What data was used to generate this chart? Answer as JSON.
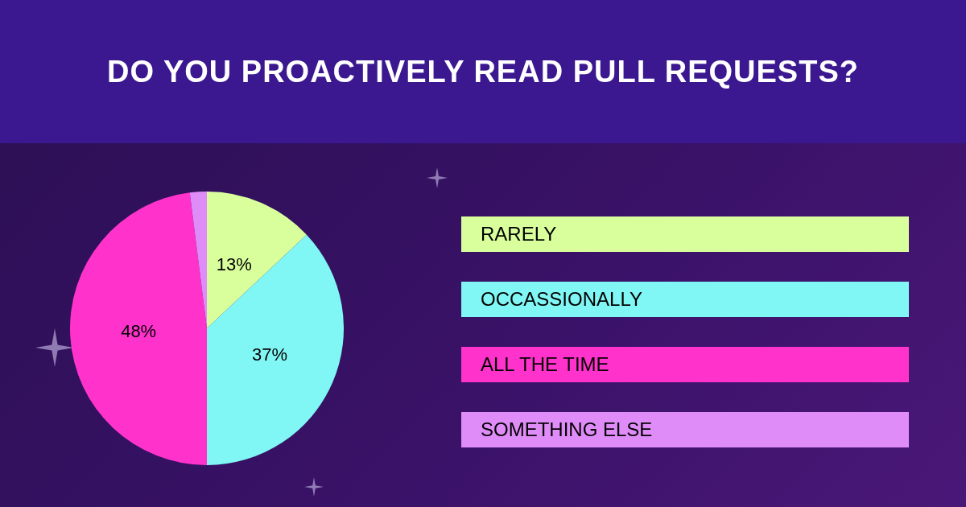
{
  "chart_data": {
    "type": "pie",
    "title": "DO YOU PROACTIVELY READ PULL REQUESTS?",
    "categories": [
      "RARELY",
      "OCCASSIONALLY",
      "ALL THE TIME",
      "SOMETHING ELSE"
    ],
    "values": [
      13,
      37,
      48,
      2
    ],
    "colors": [
      "#d9ff9d",
      "#80f7f5",
      "#ff33cc",
      "#e08cf8"
    ],
    "value_labels": [
      "13%",
      "37%",
      "48%",
      null
    ],
    "legend": "right"
  }
}
